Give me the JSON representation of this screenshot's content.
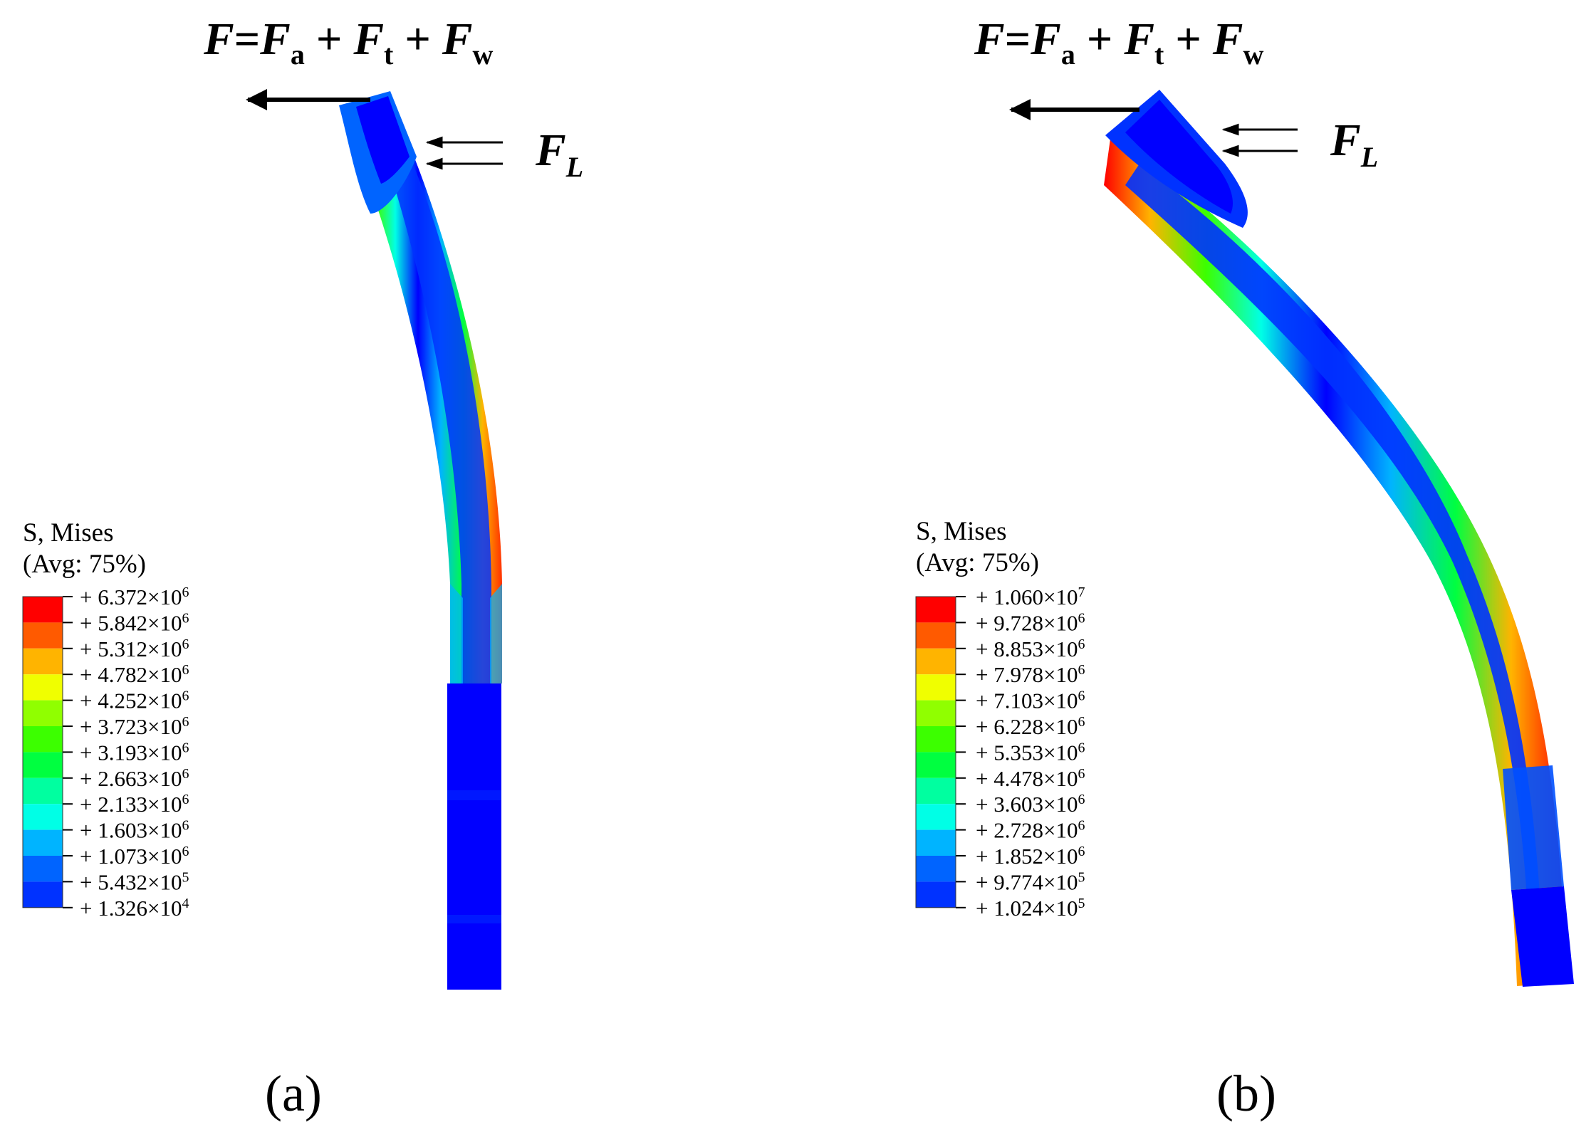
{
  "panels": [
    {
      "id": "a",
      "caption": "(a)",
      "force_label": {
        "lhs": "F",
        "eq": "=",
        "t1": "F",
        "s1": "a",
        "plus1": " + ",
        "t2": "F",
        "s2": "t",
        "plus2": " + ",
        "t3": "F",
        "s3": "w"
      },
      "lateral_label": {
        "main": "F",
        "sub": "L"
      },
      "legend": {
        "title_line1": "S, Mises",
        "title_line2": "(Avg: 75%)",
        "levels": [
          {
            "mantissa": "+ 6.372×10",
            "exp": "6"
          },
          {
            "mantissa": "+ 5.842×10",
            "exp": "6"
          },
          {
            "mantissa": "+ 5.312×10",
            "exp": "6"
          },
          {
            "mantissa": "+ 4.782×10",
            "exp": "6"
          },
          {
            "mantissa": "+ 4.252×10",
            "exp": "6"
          },
          {
            "mantissa": "+ 3.723×10",
            "exp": "6"
          },
          {
            "mantissa": "+ 3.193×10",
            "exp": "6"
          },
          {
            "mantissa": "+ 2.663×10",
            "exp": "6"
          },
          {
            "mantissa": "+ 2.133×10",
            "exp": "6"
          },
          {
            "mantissa": "+ 1.603×10",
            "exp": "6"
          },
          {
            "mantissa": "+ 1.073×10",
            "exp": "6"
          },
          {
            "mantissa": "+ 5.432×10",
            "exp": "5"
          },
          {
            "mantissa": "+ 1.326×10",
            "exp": "4"
          }
        ]
      }
    },
    {
      "id": "b",
      "caption": "(b)",
      "force_label": {
        "lhs": "F",
        "eq": "=",
        "t1": "F",
        "s1": "a",
        "plus1": " + ",
        "t2": "F",
        "s2": "t",
        "plus2": " + ",
        "t3": "F",
        "s3": "w"
      },
      "lateral_label": {
        "main": "F",
        "sub": "L"
      },
      "legend": {
        "title_line1": "S, Mises",
        "title_line2": "(Avg: 75%)",
        "levels": [
          {
            "mantissa": "+ 1.060×10",
            "exp": "7"
          },
          {
            "mantissa": "+ 9.728×10",
            "exp": "6"
          },
          {
            "mantissa": "+ 8.853×10",
            "exp": "6"
          },
          {
            "mantissa": "+ 7.978×10",
            "exp": "6"
          },
          {
            "mantissa": "+ 7.103×10",
            "exp": "6"
          },
          {
            "mantissa": "+ 6.228×10",
            "exp": "6"
          },
          {
            "mantissa": "+ 5.353×10",
            "exp": "6"
          },
          {
            "mantissa": "+ 4.478×10",
            "exp": "6"
          },
          {
            "mantissa": "+ 3.603×10",
            "exp": "6"
          },
          {
            "mantissa": "+ 2.728×10",
            "exp": "6"
          },
          {
            "mantissa": "+ 1.852×10",
            "exp": "6"
          },
          {
            "mantissa": "+ 9.774×10",
            "exp": "5"
          },
          {
            "mantissa": "+ 1.024×10",
            "exp": "5"
          }
        ]
      }
    }
  ],
  "colors": {
    "contour_bands": [
      "#ff0000",
      "#ff5a00",
      "#ffb400",
      "#f0ff00",
      "#90ff00",
      "#3cff00",
      "#00ff40",
      "#00ffa0",
      "#00ffe6",
      "#00b4ff",
      "#0064ff",
      "#0032ff",
      "#0000ff"
    ],
    "arrow": "#000000"
  }
}
